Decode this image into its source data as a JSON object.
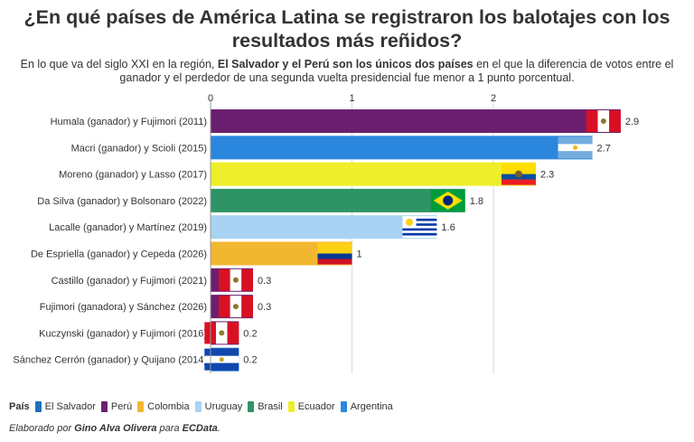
{
  "header": {
    "title": "¿En qué países de América Latina se registraron los balotajes con los resultados más reñidos?",
    "subtitle_before": "En lo que va del siglo XXI en la región, ",
    "subtitle_bold": "El Salvador y el Perú son los únicos dos países",
    "subtitle_after": " en el que la diferencia de votos entre el ganador y el perdedor de una segunda vuelta presidencial fue menor a 1 punto porcentual."
  },
  "legend": {
    "title": "País",
    "items": [
      {
        "label": "El Salvador",
        "color": "#1f6fbf"
      },
      {
        "label": "Perú",
        "color": "#6b1f6e"
      },
      {
        "label": "Colombia",
        "color": "#f2b731"
      },
      {
        "label": "Uruguay",
        "color": "#a9d3f2"
      },
      {
        "label": "Brasil",
        "color": "#2e9466"
      },
      {
        "label": "Ecuador",
        "color": "#eeee2a"
      },
      {
        "label": "Argentina",
        "color": "#2b86dd"
      }
    ]
  },
  "credit": {
    "prefix": "Elaborado por ",
    "author": "Gino Alva Olivera",
    "middle": " para ",
    "outlet": "ECData",
    "suffix": "."
  },
  "chart_data": {
    "type": "bar",
    "orientation": "horizontal",
    "title": "",
    "xlabel": "",
    "ylabel": "",
    "xlim": [
      0,
      3
    ],
    "x_ticks": [
      "0",
      "1",
      "2"
    ],
    "grid": true,
    "categories": [
      "Humala (ganador) y Fujimori (2011)",
      "Macri (ganador) y Scioli (2015)",
      "Moreno (ganador) y Lasso (2017)",
      "Da Silva (ganador) y Bolsonaro (2022)",
      "Lacalle (ganador) y Martínez (2019)",
      "De Espriella (ganador) y Cepeda (2026)",
      "Castillo (ganador) y Fujimori (2021)",
      "Fujimori (ganadora) y Sánchez (2026)",
      "Kuczynski (ganador) y Fujimori (2016)",
      "Sánchez Cerrón (ganador) y Quijano (2014)"
    ],
    "values": [
      2.9,
      2.7,
      2.3,
      1.8,
      1.6,
      1,
      0.3,
      0.3,
      0.2,
      0.2
    ],
    "value_labels": [
      "2.9",
      "2.7",
      "2.3",
      "1.8",
      "1.6",
      "1",
      "0.3",
      "0.3",
      "0.2",
      "0.2"
    ],
    "countries": [
      "Perú",
      "Argentina",
      "Ecuador",
      "Brasil",
      "Uruguay",
      "Colombia",
      "Perú",
      "Perú",
      "Perú",
      "El Salvador"
    ],
    "colors": [
      "#6b1f6e",
      "#2b86dd",
      "#eeee2a",
      "#2e9466",
      "#a9d3f2",
      "#f2b731",
      "#6b1f6e",
      "#6b1f6e",
      "#6b1f6e",
      "#1f6fbf"
    ],
    "flags": [
      "peru-flag",
      "argentina-flag",
      "ecuador-flag",
      "brazil-flag",
      "uruguay-flag",
      "colombia-flag",
      "peru-flag",
      "peru-flag",
      "peru-flag",
      "el-salvador-flag"
    ]
  }
}
